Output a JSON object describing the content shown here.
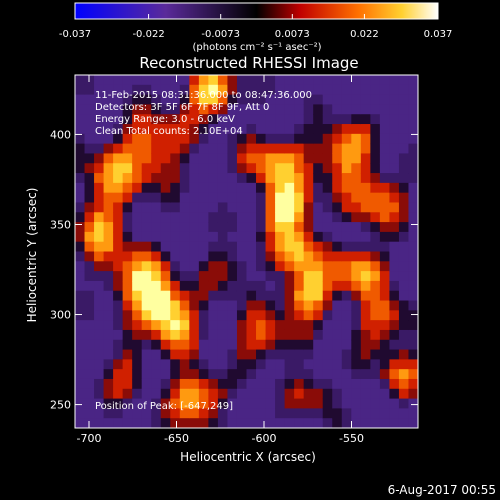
{
  "colorbar": {
    "ticks": [
      "-0.037",
      "-0.022",
      "-0.0073",
      "0.0073",
      "0.022",
      "0.037"
    ],
    "tick_values": [
      -0.037,
      -0.022,
      -0.0073,
      0.0073,
      0.022,
      0.037
    ],
    "unit": "(photons cm⁻² s⁻¹ asec⁻²)"
  },
  "title": "Reconstructed RHESSI Image",
  "annotation": {
    "line1": "11-Feb-2015 08:31:36.000 to 08:47:36.000",
    "line2": "Detectors: 3F 5F 6F 7F 8F 9F, Att 0",
    "line3": "Energy Range: 3.0 - 6.0 keV",
    "line4": "Clean    Total counts: 2.10E+04",
    "position": "Position of Peak: [-647,249]"
  },
  "axes": {
    "xlabel": "Heliocentric X (arcsec)",
    "ylabel": "Heliocentric Y (arcsec)",
    "xticks": [
      "-700",
      "-650",
      "-600",
      "-550"
    ],
    "xtick_values": [
      -700,
      -650,
      -600,
      -550
    ],
    "yticks": [
      "400",
      "350",
      "300",
      "250"
    ],
    "ytick_values": [
      400,
      350,
      300,
      250
    ],
    "xrange": [
      -708,
      -512
    ],
    "yrange": [
      237,
      433
    ]
  },
  "footer_date": "6-Aug-2017 00:55",
  "colors": {
    "background": "#000000",
    "cold": "#2020ff",
    "purple": "#5a2a9a",
    "hot_red": "#d01000",
    "hot_orange": "#ff8c00",
    "hot_yellow": "#ffe040",
    "white": "#ffffff"
  }
}
